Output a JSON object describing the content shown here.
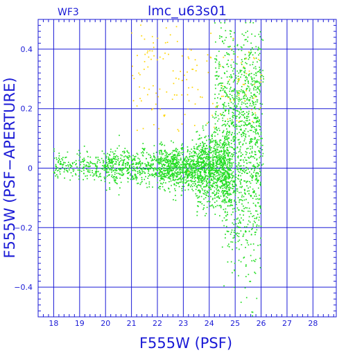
{
  "chart_data": {
    "type": "scatter",
    "title": "lmc_u63s01",
    "corner_label": "WF3",
    "xlabel": "F555W (PSF)",
    "ylabel": "F555W (PSF−APERTURE)",
    "xlim": [
      17.4,
      28.9
    ],
    "ylim": [
      -0.5,
      0.5
    ],
    "x_ticks": [
      18,
      19,
      20,
      21,
      22,
      23,
      24,
      25,
      26,
      27,
      28
    ],
    "x_tick_labels": [
      "18",
      "19",
      "20",
      "21",
      "22",
      "23",
      "24",
      "25",
      "26",
      "27",
      "28"
    ],
    "y_ticks": [
      -0.4,
      -0.2,
      0,
      0.2,
      0.4
    ],
    "y_tick_labels": [
      "−0.4",
      "−0.2",
      "0",
      "0.2",
      "0.4"
    ],
    "grid": true,
    "colors": {
      "axis": "#1a1ad6",
      "series_main": "#22dd22",
      "series_outlier": "#ffd400"
    },
    "series": [
      {
        "color": "#22dd22",
        "density_model": [
          {
            "xrange": [
              18.0,
              20.0
            ],
            "ymean": 0.005,
            "ysd": 0.025,
            "weight": 0.06
          },
          {
            "xrange": [
              20.0,
              22.0
            ],
            "ymean": 0.005,
            "ysd": 0.03,
            "weight": 0.12
          },
          {
            "xrange": [
              22.0,
              23.5
            ],
            "ymean": 0.0,
            "ysd": 0.035,
            "weight": 0.2
          },
          {
            "xrange": [
              23.5,
              24.8
            ],
            "ymean": -0.005,
            "ysd": 0.06,
            "weight": 0.26
          },
          {
            "xrange": [
              24.5,
              26.0
            ],
            "ymean": -0.02,
            "ysd": 0.12,
            "weight": 0.22
          },
          {
            "xrange": [
              24.2,
              26.1
            ],
            "ymean": 0.25,
            "ysd": 0.12,
            "weight": 0.14
          }
        ],
        "n_points": 3600
      },
      {
        "color": "#ffd400",
        "density_model": [
          {
            "xrange": [
              21.0,
              26.0
            ],
            "ymean": 0.3,
            "ysd": 0.1,
            "weight": 1.0
          }
        ],
        "n_points": 160
      }
    ]
  }
}
